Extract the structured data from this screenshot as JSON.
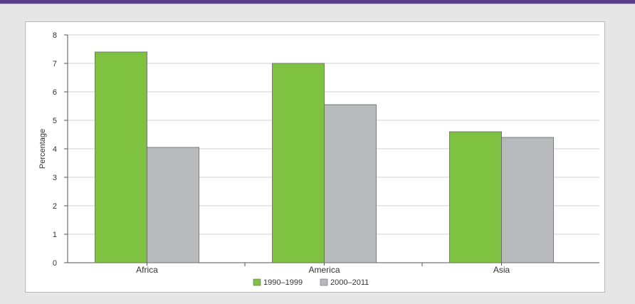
{
  "chart_data": {
    "type": "bar",
    "title": "",
    "xlabel": "",
    "ylabel": "Percentage",
    "ylim": [
      0,
      8
    ],
    "yticks": [
      0,
      1,
      2,
      3,
      4,
      5,
      6,
      7,
      8
    ],
    "grid": true,
    "legend_position": "bottom",
    "categories": [
      "Africa",
      "America",
      "Asia"
    ],
    "series": [
      {
        "name": "1990–1999",
        "color": "#7fc241",
        "values": [
          7.4,
          7.0,
          4.6
        ]
      },
      {
        "name": "2000–2011",
        "color": "#b8babd",
        "values": [
          4.05,
          5.55,
          4.4
        ]
      }
    ]
  }
}
